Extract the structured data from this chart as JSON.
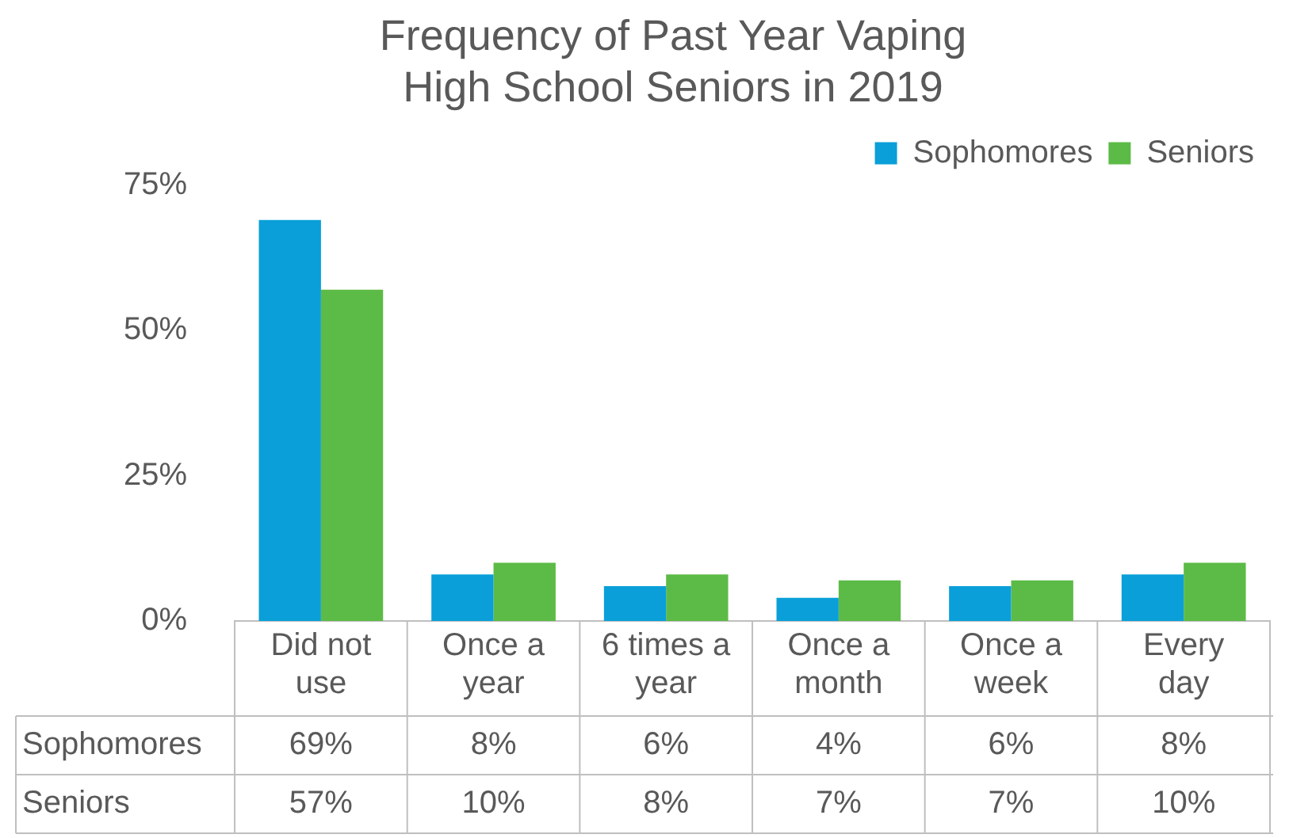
{
  "chart_data": {
    "type": "bar",
    "title": "Frequency of Past Year Vaping\nHigh School Seniors in 2019",
    "categories": [
      "Did not use",
      "Once a year",
      "6 times a year",
      "Once a month",
      "Once a week",
      "Every day"
    ],
    "series": [
      {
        "name": "Sophomores",
        "color": "#0a9fd9",
        "values": [
          69,
          8,
          6,
          4,
          6,
          8
        ],
        "value_labels": [
          "69%",
          "8%",
          "6%",
          "4%",
          "6%",
          "8%"
        ]
      },
      {
        "name": "Seniors",
        "color": "#5cbb46",
        "values": [
          57,
          10,
          8,
          7,
          7,
          10
        ],
        "value_labels": [
          "57%",
          "10%",
          "8%",
          "7%",
          "7%",
          "10%"
        ]
      }
    ],
    "ylim": [
      0,
      75
    ],
    "yticks": [
      {
        "value": 0,
        "label": "0%"
      },
      {
        "value": 25,
        "label": "25%"
      },
      {
        "value": 50,
        "label": "50%"
      },
      {
        "value": 75,
        "label": "75%"
      }
    ],
    "grid": false,
    "legend": "top right"
  }
}
